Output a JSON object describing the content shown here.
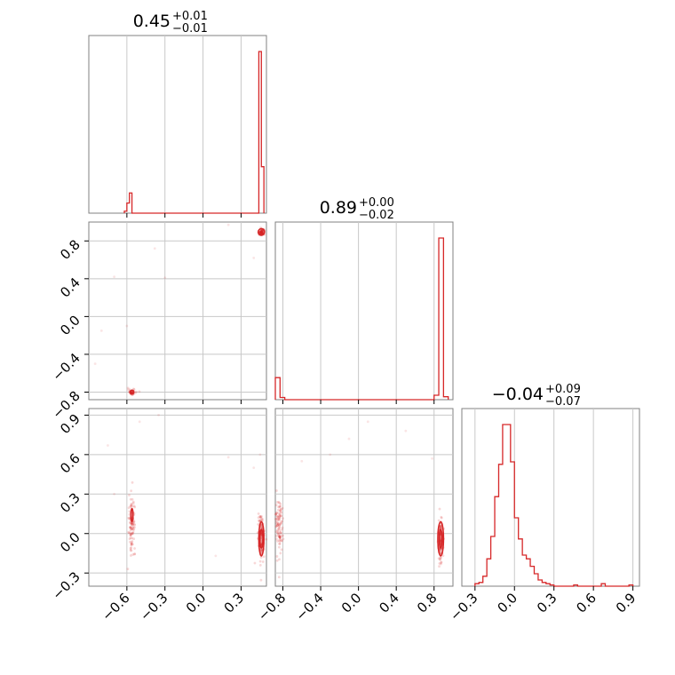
{
  "chart_data": [
    {
      "type": "histogram",
      "panel": "1d-param-1",
      "title": {
        "value": "0.45",
        "plus": "+0.01",
        "minus": "−0.01"
      },
      "xlim": [
        -0.9,
        0.5
      ],
      "bins": [
        {
          "x0": -0.62,
          "x1": -0.6,
          "count": 2
        },
        {
          "x0": -0.6,
          "x1": -0.58,
          "count": 10
        },
        {
          "x0": -0.58,
          "x1": -0.56,
          "count": 20
        },
        {
          "x0": 0.44,
          "x1": 0.46,
          "count": 160
        },
        {
          "x0": 0.46,
          "x1": 0.48,
          "count": 46
        }
      ]
    },
    {
      "type": "scatter",
      "panel": "2d-param-1-vs-param-2",
      "xlim": [
        -0.9,
        0.5
      ],
      "ylim": [
        -0.88,
        1.0
      ],
      "yticks": [
        -0.8,
        -0.4,
        0.0,
        0.4,
        0.8
      ],
      "clusters": [
        {
          "x": -0.56,
          "y": -0.8,
          "n": 50,
          "sx": 0.015,
          "sy": 0.015
        },
        {
          "x": 0.46,
          "y": 0.89,
          "n": 90,
          "sx": 0.01,
          "sy": 0.015
        }
      ],
      "outliers": [
        [
          -0.85,
          -0.5
        ],
        [
          -0.8,
          -0.15
        ],
        [
          -0.7,
          0.42
        ],
        [
          -0.6,
          -0.1
        ],
        [
          -0.38,
          0.72
        ],
        [
          -0.3,
          0.41
        ],
        [
          0.2,
          0.97
        ],
        [
          0.4,
          0.62
        ]
      ],
      "contours": [
        {
          "cx": 0.46,
          "cy": 0.895,
          "rx": 0.025,
          "ry": 0.035,
          "rot": 20
        },
        {
          "cx": -0.56,
          "cy": -0.8,
          "rx": 0.015,
          "ry": 0.02,
          "rot": 0
        }
      ]
    },
    {
      "type": "histogram",
      "panel": "1d-param-2",
      "title": {
        "value": "0.89",
        "plus": "+0.00",
        "minus": "−0.02"
      },
      "xlim": [
        -0.88,
        1.0
      ],
      "bins": [
        {
          "x0": -0.88,
          "x1": -0.83,
          "count": 30
        },
        {
          "x0": -0.83,
          "x1": -0.78,
          "count": 3
        },
        {
          "x0": 0.8,
          "x1": 0.85,
          "count": 6
        },
        {
          "x0": 0.85,
          "x1": 0.9,
          "count": 220
        },
        {
          "x0": 0.9,
          "x1": 0.95,
          "count": 4
        }
      ]
    },
    {
      "type": "scatter",
      "panel": "2d-param-1-vs-param-3",
      "xlim": [
        -0.9,
        0.5
      ],
      "ylim": [
        -0.4,
        0.95
      ],
      "xticks": [
        -0.6,
        -0.3,
        0.0,
        0.3
      ],
      "yticks": [
        -0.3,
        0.0,
        0.3,
        0.6,
        0.9
      ],
      "clusters": [
        {
          "x": -0.56,
          "y": 0.08,
          "n": 110,
          "sx": 0.012,
          "sy": 0.1
        },
        {
          "x": 0.46,
          "y": -0.03,
          "n": 150,
          "sx": 0.012,
          "sy": 0.08
        }
      ],
      "outliers": [
        [
          -0.75,
          0.67
        ],
        [
          -0.7,
          0.3
        ],
        [
          -0.5,
          0.85
        ],
        [
          -0.35,
          0.9
        ],
        [
          0.2,
          0.58
        ],
        [
          0.45,
          0.6
        ],
        [
          0.4,
          0.5
        ],
        [
          0.1,
          -0.17
        ]
      ],
      "contours": [
        {
          "cx": 0.46,
          "cy": -0.04,
          "rx": 0.02,
          "ry": 0.13,
          "rot": 0
        },
        {
          "cx": 0.46,
          "cy": -0.04,
          "rx": 0.012,
          "ry": 0.07,
          "rot": 0
        },
        {
          "cx": -0.56,
          "cy": 0.14,
          "rx": 0.008,
          "ry": 0.05,
          "rot": 0
        }
      ]
    },
    {
      "type": "scatter",
      "panel": "2d-param-2-vs-param-3",
      "xlim": [
        -0.88,
        1.0
      ],
      "ylim": [
        -0.4,
        0.95
      ],
      "xticks": [
        -0.8,
        -0.4,
        0.0,
        0.4,
        0.8
      ],
      "clusters": [
        {
          "x": -0.84,
          "y": 0.05,
          "n": 110,
          "sx": 0.02,
          "sy": 0.12
        },
        {
          "x": 0.87,
          "y": -0.04,
          "n": 150,
          "sx": 0.012,
          "sy": 0.08
        }
      ],
      "outliers": [
        [
          -0.6,
          0.55
        ],
        [
          -0.3,
          0.6
        ],
        [
          -0.1,
          0.72
        ],
        [
          0.1,
          0.85
        ],
        [
          0.5,
          0.78
        ],
        [
          0.78,
          0.57
        ]
      ],
      "contours": [
        {
          "cx": 0.87,
          "cy": -0.04,
          "rx": 0.03,
          "ry": 0.13,
          "rot": 0
        },
        {
          "cx": 0.87,
          "cy": -0.04,
          "rx": 0.015,
          "ry": 0.07,
          "rot": 0
        }
      ]
    },
    {
      "type": "histogram",
      "panel": "1d-param-3",
      "title": {
        "value": "−0.04",
        "plus": "+0.09",
        "minus": "−0.07"
      },
      "xlim": [
        -0.4,
        0.95
      ],
      "xticks": [
        -0.3,
        0.0,
        0.3,
        0.6,
        0.9
      ],
      "bins": [
        {
          "x0": -0.3,
          "x1": -0.27,
          "count": 2
        },
        {
          "x0": -0.27,
          "x1": -0.24,
          "count": 3
        },
        {
          "x0": -0.24,
          "x1": -0.21,
          "count": 8
        },
        {
          "x0": -0.21,
          "x1": -0.18,
          "count": 22
        },
        {
          "x0": -0.18,
          "x1": -0.15,
          "count": 40
        },
        {
          "x0": -0.15,
          "x1": -0.12,
          "count": 72
        },
        {
          "x0": -0.12,
          "x1": -0.09,
          "count": 98
        },
        {
          "x0": -0.09,
          "x1": -0.06,
          "count": 130
        },
        {
          "x0": -0.06,
          "x1": -0.03,
          "count": 130
        },
        {
          "x0": -0.03,
          "x1": 0.0,
          "count": 100
        },
        {
          "x0": 0.0,
          "x1": 0.03,
          "count": 55
        },
        {
          "x0": 0.03,
          "x1": 0.06,
          "count": 38
        },
        {
          "x0": 0.06,
          "x1": 0.09,
          "count": 25
        },
        {
          "x0": 0.09,
          "x1": 0.12,
          "count": 22
        },
        {
          "x0": 0.12,
          "x1": 0.15,
          "count": 16
        },
        {
          "x0": 0.15,
          "x1": 0.18,
          "count": 10
        },
        {
          "x0": 0.18,
          "x1": 0.21,
          "count": 5
        },
        {
          "x0": 0.21,
          "x1": 0.24,
          "count": 3
        },
        {
          "x0": 0.24,
          "x1": 0.27,
          "count": 2
        },
        {
          "x0": 0.27,
          "x1": 0.3,
          "count": 1
        },
        {
          "x0": 0.45,
          "x1": 0.48,
          "count": 1
        },
        {
          "x0": 0.66,
          "x1": 0.69,
          "count": 2
        },
        {
          "x0": 0.87,
          "x1": 0.9,
          "count": 1
        }
      ]
    }
  ]
}
